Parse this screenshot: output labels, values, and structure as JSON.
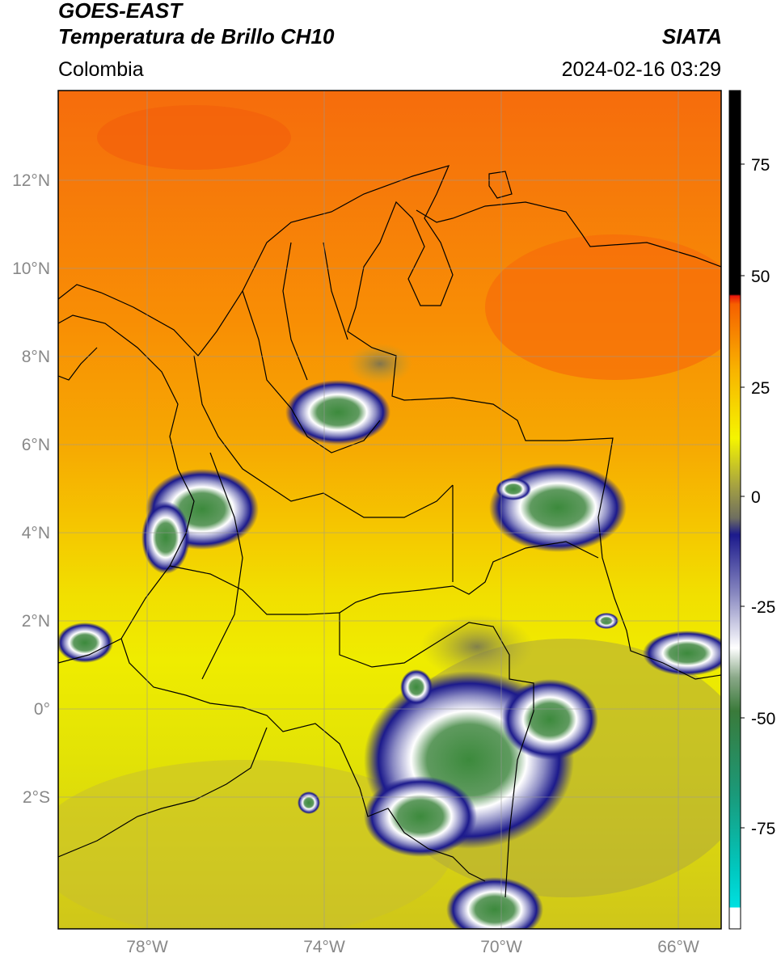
{
  "header": {
    "satellite": "GOES-EAST",
    "product": "Temperatura de Brillo CH10",
    "organization": "SIATA",
    "region": "Colombia",
    "timestamp": "2024-02-16 03:29"
  },
  "map": {
    "lon_range": [
      -80,
      -65
    ],
    "lat_range": [
      -5,
      14
    ],
    "lat_ticks": [
      "12°N",
      "10°N",
      "8°N",
      "6°N",
      "4°N",
      "2°N",
      "0°",
      "2°S"
    ],
    "lon_ticks": [
      "78°W",
      "74°W",
      "70°W",
      "66°W"
    ]
  },
  "colorbar": {
    "ticks": [
      "75",
      "50",
      "25",
      "0",
      "-25",
      "-50",
      "-75"
    ],
    "colors": {
      "black": "#000000",
      "red": "#e8170c",
      "orange": "#f98a00",
      "yellow": "#f5f500",
      "olive": "#b8b43a",
      "gray": "#6e6e60",
      "navy": "#1c1a8c",
      "white": "#ffffff",
      "green": "#3c8a3c",
      "teal": "#1ab89a",
      "cyan": "#00e5e5"
    }
  }
}
